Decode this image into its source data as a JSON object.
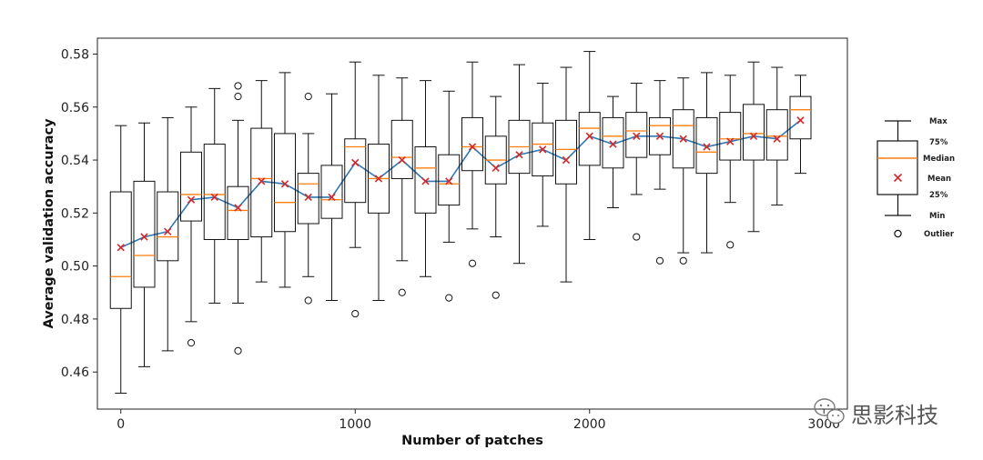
{
  "chart_data": {
    "type": "box",
    "title": "",
    "xlabel": "Number of patches",
    "ylabel": "Average validation accuracy",
    "xlim": [
      -100,
      3100
    ],
    "ylim": [
      0.446,
      0.586
    ],
    "xticks": [
      0,
      1000,
      2000,
      3000
    ],
    "xtick_labels": [
      "0",
      "1000",
      "2000",
      "3000"
    ],
    "yticks": [
      0.46,
      0.48,
      0.5,
      0.52,
      0.54,
      0.56,
      0.58
    ],
    "ytick_labels": [
      "0.46",
      "0.48",
      "0.50",
      "0.52",
      "0.54",
      "0.56",
      "0.58"
    ],
    "grid": false,
    "mean_line_color": "#2f78b4",
    "mean_marker_color": "#d62728",
    "median_color": "#ff7f0e",
    "box_color": "#111111",
    "boxes": [
      {
        "x": 0,
        "whislo": 0.452,
        "q1": 0.484,
        "med": 0.496,
        "q3": 0.528,
        "whishi": 0.553,
        "mean": 0.507,
        "fliers": []
      },
      {
        "x": 100,
        "whislo": 0.462,
        "q1": 0.492,
        "med": 0.504,
        "q3": 0.532,
        "whishi": 0.554,
        "mean": 0.511,
        "fliers": []
      },
      {
        "x": 200,
        "whislo": 0.468,
        "q1": 0.502,
        "med": 0.511,
        "q3": 0.528,
        "whishi": 0.556,
        "mean": 0.513,
        "fliers": []
      },
      {
        "x": 300,
        "whislo": 0.479,
        "q1": 0.517,
        "med": 0.527,
        "q3": 0.543,
        "whishi": 0.56,
        "mean": 0.525,
        "fliers": [
          0.471
        ]
      },
      {
        "x": 400,
        "whislo": 0.486,
        "q1": 0.51,
        "med": 0.527,
        "q3": 0.546,
        "whishi": 0.567,
        "mean": 0.526,
        "fliers": []
      },
      {
        "x": 500,
        "whislo": 0.486,
        "q1": 0.51,
        "med": 0.521,
        "q3": 0.53,
        "whishi": 0.555,
        "mean": 0.522,
        "fliers": [
          0.468,
          0.564,
          0.568
        ]
      },
      {
        "x": 600,
        "whislo": 0.494,
        "q1": 0.511,
        "med": 0.533,
        "q3": 0.552,
        "whishi": 0.57,
        "mean": 0.532,
        "fliers": []
      },
      {
        "x": 700,
        "whislo": 0.492,
        "q1": 0.513,
        "med": 0.524,
        "q3": 0.55,
        "whishi": 0.573,
        "mean": 0.531,
        "fliers": []
      },
      {
        "x": 800,
        "whislo": 0.496,
        "q1": 0.516,
        "med": 0.531,
        "q3": 0.535,
        "whishi": 0.55,
        "mean": 0.526,
        "fliers": [
          0.487,
          0.564
        ]
      },
      {
        "x": 900,
        "whislo": 0.487,
        "q1": 0.518,
        "med": 0.525,
        "q3": 0.538,
        "whishi": 0.565,
        "mean": 0.526,
        "fliers": []
      },
      {
        "x": 1000,
        "whislo": 0.507,
        "q1": 0.524,
        "med": 0.545,
        "q3": 0.548,
        "whishi": 0.577,
        "mean": 0.539,
        "fliers": [
          0.482
        ]
      },
      {
        "x": 1100,
        "whislo": 0.487,
        "q1": 0.52,
        "med": 0.533,
        "q3": 0.546,
        "whishi": 0.572,
        "mean": 0.533,
        "fliers": []
      },
      {
        "x": 1200,
        "whislo": 0.502,
        "q1": 0.533,
        "med": 0.541,
        "q3": 0.555,
        "whishi": 0.571,
        "mean": 0.54,
        "fliers": [
          0.49
        ]
      },
      {
        "x": 1300,
        "whislo": 0.496,
        "q1": 0.52,
        "med": 0.537,
        "q3": 0.545,
        "whishi": 0.57,
        "mean": 0.532,
        "fliers": []
      },
      {
        "x": 1400,
        "whislo": 0.509,
        "q1": 0.523,
        "med": 0.531,
        "q3": 0.542,
        "whishi": 0.566,
        "mean": 0.532,
        "fliers": [
          0.488
        ]
      },
      {
        "x": 1500,
        "whislo": 0.514,
        "q1": 0.536,
        "med": 0.545,
        "q3": 0.556,
        "whishi": 0.577,
        "mean": 0.545,
        "fliers": [
          0.501
        ]
      },
      {
        "x": 1600,
        "whislo": 0.511,
        "q1": 0.531,
        "med": 0.54,
        "q3": 0.549,
        "whishi": 0.564,
        "mean": 0.537,
        "fliers": [
          0.489
        ]
      },
      {
        "x": 1700,
        "whislo": 0.501,
        "q1": 0.535,
        "med": 0.545,
        "q3": 0.555,
        "whishi": 0.576,
        "mean": 0.542,
        "fliers": []
      },
      {
        "x": 1800,
        "whislo": 0.515,
        "q1": 0.534,
        "med": 0.546,
        "q3": 0.554,
        "whishi": 0.569,
        "mean": 0.544,
        "fliers": []
      },
      {
        "x": 1900,
        "whislo": 0.494,
        "q1": 0.531,
        "med": 0.544,
        "q3": 0.555,
        "whishi": 0.575,
        "mean": 0.54,
        "fliers": []
      },
      {
        "x": 2000,
        "whislo": 0.51,
        "q1": 0.538,
        "med": 0.552,
        "q3": 0.558,
        "whishi": 0.581,
        "mean": 0.549,
        "fliers": []
      },
      {
        "x": 2100,
        "whislo": 0.522,
        "q1": 0.537,
        "med": 0.549,
        "q3": 0.556,
        "whishi": 0.564,
        "mean": 0.546,
        "fliers": []
      },
      {
        "x": 2200,
        "whislo": 0.527,
        "q1": 0.541,
        "med": 0.551,
        "q3": 0.558,
        "whishi": 0.569,
        "mean": 0.549,
        "fliers": [
          0.511
        ]
      },
      {
        "x": 2300,
        "whislo": 0.529,
        "q1": 0.542,
        "med": 0.553,
        "q3": 0.556,
        "whishi": 0.57,
        "mean": 0.549,
        "fliers": [
          0.502
        ]
      },
      {
        "x": 2400,
        "whislo": 0.505,
        "q1": 0.537,
        "med": 0.553,
        "q3": 0.559,
        "whishi": 0.571,
        "mean": 0.548,
        "fliers": [
          0.502
        ]
      },
      {
        "x": 2500,
        "whislo": 0.505,
        "q1": 0.535,
        "med": 0.543,
        "q3": 0.556,
        "whishi": 0.573,
        "mean": 0.545,
        "fliers": []
      },
      {
        "x": 2600,
        "whislo": 0.524,
        "q1": 0.54,
        "med": 0.548,
        "q3": 0.558,
        "whishi": 0.572,
        "mean": 0.547,
        "fliers": [
          0.508
        ]
      },
      {
        "x": 2700,
        "whislo": 0.513,
        "q1": 0.54,
        "med": 0.55,
        "q3": 0.561,
        "whishi": 0.577,
        "mean": 0.549,
        "fliers": []
      },
      {
        "x": 2800,
        "whislo": 0.523,
        "q1": 0.54,
        "med": 0.549,
        "q3": 0.559,
        "whishi": 0.575,
        "mean": 0.548,
        "fliers": []
      },
      {
        "x": 2900,
        "whislo": 0.535,
        "q1": 0.548,
        "med": 0.559,
        "q3": 0.564,
        "whishi": 0.572,
        "mean": 0.555,
        "fliers": []
      }
    ],
    "legend": {
      "placement": "right",
      "max": "Max",
      "q3": "75%",
      "median": "Median",
      "mean": "Mean",
      "q1": "25%",
      "min": "Min",
      "outlier": "Outlier"
    }
  },
  "watermark": {
    "text": "思影科技",
    "icon": "wechat-icon"
  }
}
